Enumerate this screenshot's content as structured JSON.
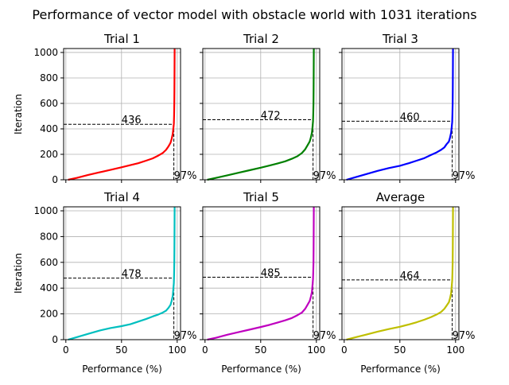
{
  "figure": {
    "suptitle": "Performance of vector model with obstacle world with 1031 iterations",
    "xlabel": "Performance (%)",
    "ylabel": "Iteration",
    "xticks": [
      "0",
      "50",
      "100"
    ],
    "yticks": [
      "0",
      "200",
      "400",
      "600",
      "800",
      "1000"
    ]
  },
  "chart_data": [
    {
      "type": "line",
      "title": "Trial 1",
      "color": "#ff0000",
      "xlim": [
        -2,
        103
      ],
      "ylim": [
        0,
        1031
      ],
      "x": [
        2,
        10,
        20,
        30,
        40,
        50,
        58,
        65,
        72,
        78,
        83,
        87,
        90,
        92,
        94,
        95,
        96,
        96.5,
        97,
        97.2,
        97.4,
        97.5,
        97.6,
        97.7
      ],
      "y": [
        0,
        15,
        38,
        58,
        78,
        98,
        115,
        130,
        150,
        168,
        190,
        210,
        235,
        260,
        290,
        320,
        360,
        400,
        440,
        500,
        600,
        700,
        850,
        1031
      ],
      "threshold_x": 97,
      "threshold_iter": 436,
      "threshold_label": "436",
      "percent_label": "97%"
    },
    {
      "type": "line",
      "title": "Trial 2",
      "color": "#008000",
      "xlim": [
        -2,
        103
      ],
      "ylim": [
        0,
        1031
      ],
      "x": [
        2,
        10,
        20,
        30,
        40,
        50,
        58,
        65,
        72,
        78,
        83,
        87,
        90,
        92,
        94,
        95,
        96,
        96.5,
        97,
        97.2,
        97.4,
        97.5,
        97.6,
        97.7
      ],
      "y": [
        0,
        15,
        35,
        55,
        75,
        95,
        112,
        128,
        145,
        165,
        185,
        210,
        240,
        270,
        300,
        330,
        370,
        410,
        460,
        520,
        600,
        700,
        850,
        1031
      ],
      "threshold_x": 97,
      "threshold_iter": 472,
      "threshold_label": "472",
      "percent_label": "97%"
    },
    {
      "type": "line",
      "title": "Trial 3",
      "color": "#0000ff",
      "xlim": [
        -2,
        103
      ],
      "ylim": [
        0,
        1031
      ],
      "x": [
        2,
        10,
        20,
        30,
        40,
        50,
        58,
        65,
        72,
        78,
        83,
        87,
        90,
        92,
        94,
        95,
        96,
        96.5,
        97,
        97.2,
        97.4,
        97.5,
        97.6,
        97.7
      ],
      "y": [
        0,
        20,
        45,
        70,
        92,
        110,
        130,
        150,
        170,
        195,
        215,
        235,
        255,
        280,
        300,
        330,
        370,
        410,
        455,
        520,
        600,
        700,
        850,
        1031
      ],
      "threshold_x": 97,
      "threshold_iter": 460,
      "threshold_label": "460",
      "percent_label": "97%"
    },
    {
      "type": "line",
      "title": "Trial 4",
      "color": "#00bfbf",
      "xlim": [
        -2,
        103
      ],
      "ylim": [
        0,
        1031
      ],
      "x": [
        2,
        10,
        20,
        30,
        40,
        50,
        58,
        65,
        72,
        78,
        83,
        87,
        90,
        92,
        94,
        95,
        96,
        96.5,
        97,
        97.2,
        97.4,
        97.5,
        97.6,
        97.7
      ],
      "y": [
        0,
        20,
        45,
        70,
        90,
        105,
        120,
        140,
        160,
        180,
        195,
        210,
        225,
        245,
        270,
        300,
        340,
        390,
        440,
        500,
        600,
        700,
        850,
        1031
      ],
      "threshold_x": 97,
      "threshold_iter": 478,
      "threshold_label": "478",
      "percent_label": "97%"
    },
    {
      "type": "line",
      "title": "Trial 5",
      "color": "#bf00bf",
      "xlim": [
        -2,
        103
      ],
      "ylim": [
        0,
        1031
      ],
      "x": [
        2,
        10,
        20,
        30,
        40,
        50,
        58,
        65,
        72,
        78,
        83,
        87,
        90,
        92,
        94,
        95,
        96,
        96.5,
        97,
        97.2,
        97.4,
        97.5,
        97.6,
        97.7
      ],
      "y": [
        0,
        15,
        38,
        58,
        78,
        98,
        115,
        132,
        150,
        168,
        190,
        210,
        240,
        270,
        300,
        330,
        370,
        420,
        470,
        530,
        600,
        700,
        850,
        1031
      ],
      "threshold_x": 97,
      "threshold_iter": 485,
      "threshold_label": "485",
      "percent_label": "97%"
    },
    {
      "type": "line",
      "title": "Average",
      "color": "#bfbf00",
      "xlim": [
        -2,
        103
      ],
      "ylim": [
        0,
        1031
      ],
      "x": [
        2,
        10,
        20,
        30,
        40,
        50,
        58,
        65,
        72,
        78,
        83,
        87,
        90,
        92,
        94,
        95,
        96,
        96.5,
        97,
        97.2,
        97.4,
        97.5,
        97.6,
        97.7
      ],
      "y": [
        0,
        18,
        40,
        62,
        82,
        100,
        118,
        135,
        155,
        175,
        195,
        215,
        240,
        265,
        290,
        320,
        360,
        410,
        460,
        520,
        600,
        700,
        850,
        1031
      ],
      "threshold_x": 97,
      "threshold_iter": 464,
      "threshold_label": "464",
      "percent_label": "97%"
    }
  ]
}
